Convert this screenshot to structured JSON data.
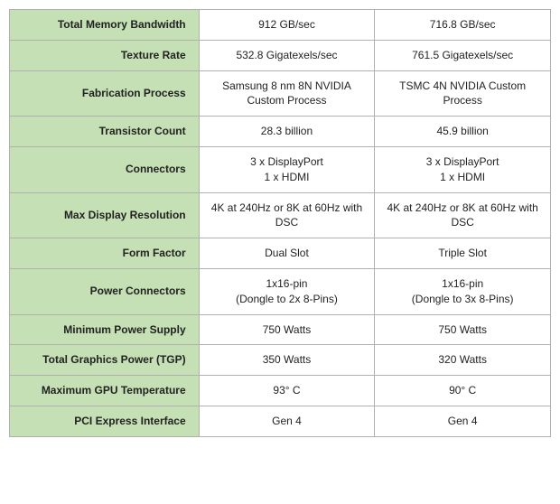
{
  "colors": {
    "label_bg": "#c5e0b4",
    "border": "#b0b0b0",
    "text": "#222222",
    "value_bg": "#ffffff"
  },
  "rows": [
    {
      "label": "Total Memory Bandwidth",
      "col1": "912 GB/sec",
      "col2": "716.8 GB/sec"
    },
    {
      "label": "Texture Rate",
      "col1": "532.8 Gigatexels/sec",
      "col2": "761.5 Gigatexels/sec"
    },
    {
      "label": "Fabrication Process",
      "col1": "Samsung 8 nm 8N NVIDIA Custom Process",
      "col2": "TSMC 4N NVIDIA Custom Process"
    },
    {
      "label": "Transistor Count",
      "col1": "28.3 billion",
      "col2": "45.9 billion"
    },
    {
      "label": "Connectors",
      "col1_l1": "3 x DisplayPort",
      "col1_l2": "1 x HDMI",
      "col2_l1": "3 x DisplayPort",
      "col2_l2": "1 x HDMI"
    },
    {
      "label": "Max Display Resolution",
      "col1": "4K at 240Hz or 8K at 60Hz with DSC",
      "col2": "4K at 240Hz or 8K at 60Hz with DSC"
    },
    {
      "label": "Form Factor",
      "col1": "Dual Slot",
      "col2": "Triple Slot"
    },
    {
      "label": "Power Connectors",
      "col1_l1": "1x16-pin",
      "col1_l2": "(Dongle to 2x 8-Pins)",
      "col2_l1": "1x16-pin",
      "col2_l2": "(Dongle to 3x 8-Pins)"
    },
    {
      "label": "Minimum Power Supply",
      "col1": "750 Watts",
      "col2": "750 Watts"
    },
    {
      "label": "Total Graphics Power (TGP)",
      "col1": "350 Watts",
      "col2": "320 Watts"
    },
    {
      "label": "Maximum GPU Temperature",
      "col1": "93° C",
      "col2": "90° C"
    },
    {
      "label": "PCI Express Interface",
      "col1": "Gen 4",
      "col2": "Gen 4"
    }
  ]
}
